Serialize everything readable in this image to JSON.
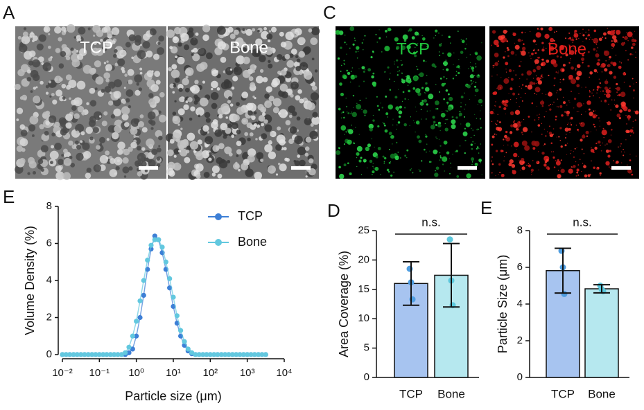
{
  "panel_labels": [
    "A",
    "C",
    "E",
    "D",
    "E"
  ],
  "images": [
    {
      "label": "TCP"
    },
    {
      "label": "Bone"
    },
    {
      "label": "TCP"
    },
    {
      "label": "Bone"
    }
  ],
  "chart_data": [
    {
      "type": "line",
      "xscale": "log",
      "xlabel": "Particle size (μm)",
      "ylabel": "Volume Density (%)",
      "x": [
        0.01,
        0.0126,
        0.0158,
        0.02,
        0.0251,
        0.0316,
        0.0398,
        0.0501,
        0.0631,
        0.0794,
        0.1,
        0.126,
        0.158,
        0.2,
        0.251,
        0.316,
        0.398,
        0.501,
        0.631,
        0.794,
        1,
        1.26,
        1.58,
        2,
        2.51,
        3.16,
        3.98,
        5.01,
        6.31,
        7.94,
        10,
        12.6,
        15.8,
        20,
        25.1,
        31.6,
        39.8,
        50.1,
        63.1,
        79.4,
        100,
        126,
        158,
        200,
        251,
        316,
        398,
        501,
        631,
        794,
        1000,
        1260,
        1580,
        2000,
        2510,
        3160
      ],
      "series": [
        {
          "name": "TCP",
          "color": "#3d7fd6",
          "values": [
            0,
            0,
            0,
            0,
            0,
            0,
            0,
            0,
            0,
            0,
            0,
            0,
            0,
            0,
            0,
            0,
            0,
            0,
            0.1,
            0.3,
            1.0,
            2.0,
            3.2,
            4.6,
            5.7,
            6.4,
            6.2,
            5.5,
            4.6,
            3.6,
            2.6,
            1.7,
            1.0,
            0.5,
            0.2,
            0.05,
            0,
            0,
            0,
            0,
            0,
            0,
            0,
            0,
            0,
            0,
            0,
            0,
            0,
            0,
            0,
            0,
            0,
            0,
            0,
            0
          ]
        },
        {
          "name": "Bone",
          "color": "#62c8df",
          "values": [
            0,
            0,
            0,
            0,
            0,
            0,
            0,
            0,
            0,
            0,
            0,
            0,
            0,
            0,
            0,
            0,
            0,
            0.1,
            0.4,
            1.0,
            1.8,
            2.9,
            4.0,
            5.1,
            5.9,
            6.2,
            6.2,
            5.8,
            5.0,
            4.1,
            3.1,
            2.1,
            1.3,
            0.7,
            0.3,
            0.1,
            0,
            0,
            0,
            0,
            0,
            0,
            0,
            0,
            0,
            0,
            0,
            0,
            0,
            0,
            0,
            0,
            0,
            0,
            0,
            0
          ]
        }
      ],
      "xlim": [
        0.01,
        10000
      ],
      "xticks": [
        {
          "value": 0.01,
          "label": "10⁻²"
        },
        {
          "value": 0.1,
          "label": "10⁻¹"
        },
        {
          "value": 1,
          "label": "10⁰"
        },
        {
          "value": 10,
          "label": "10¹"
        },
        {
          "value": 100,
          "label": "10²"
        },
        {
          "value": 1000,
          "label": "10³"
        },
        {
          "value": 10000,
          "label": "10⁴"
        }
      ],
      "ylim": [
        0,
        8
      ],
      "yticks": [
        0,
        2,
        4,
        6,
        8
      ],
      "legend": "upper right"
    },
    {
      "type": "bar",
      "ylabel": "Area Coverage (%)",
      "categories": [
        "TCP",
        "Bone"
      ],
      "values": [
        16.0,
        17.4
      ],
      "errors": [
        3.7,
        5.4
      ],
      "points": [
        [
          18.5,
          16.2,
          13.3
        ],
        [
          23.5,
          16.5,
          12.3
        ]
      ],
      "colors": [
        "#a7c4f0",
        "#b6e8ef"
      ],
      "point_colors": [
        "#4f9de0",
        "#5cc7dc"
      ],
      "annotation": "n.s.",
      "ylim": [
        0,
        25
      ],
      "yticks": [
        0,
        5,
        10,
        15,
        20,
        25
      ]
    },
    {
      "type": "bar",
      "ylabel": "Particle Size (μm)",
      "categories": [
        "TCP",
        "Bone"
      ],
      "values": [
        5.82,
        4.83
      ],
      "errors": [
        1.22,
        0.22
      ],
      "points": [
        [
          6.9,
          6.0,
          4.55
        ],
        [
          5.0,
          4.8,
          4.7
        ]
      ],
      "colors": [
        "#a7c4f0",
        "#b6e8ef"
      ],
      "point_colors": [
        "#4f9de0",
        "#5cc7dc"
      ],
      "annotation": "n.s.",
      "ylim": [
        0,
        8
      ],
      "yticks": [
        0,
        2,
        4,
        6,
        8
      ]
    }
  ]
}
